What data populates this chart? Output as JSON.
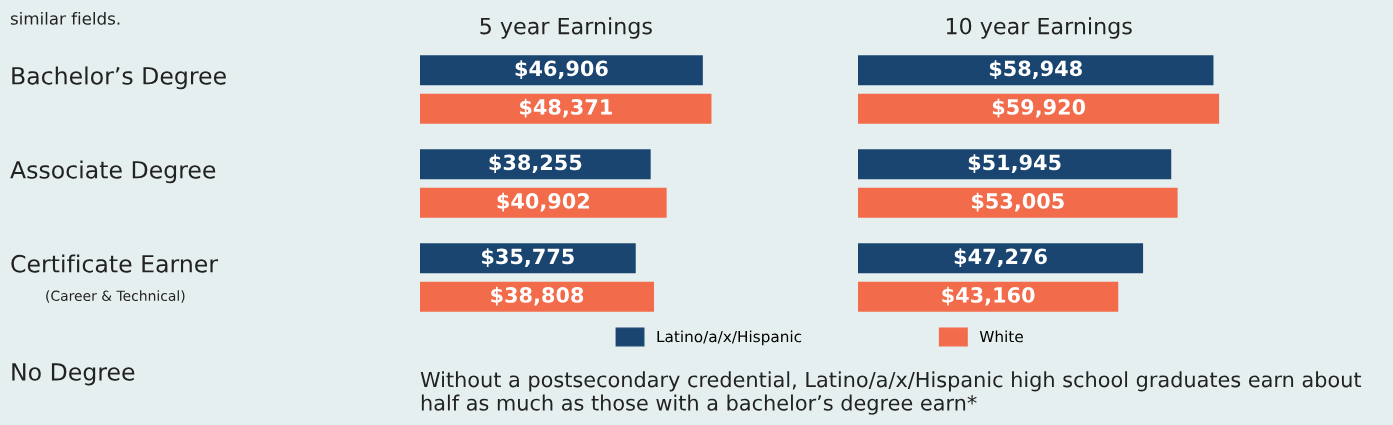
{
  "chart_data": [
    {
      "type": "bar",
      "orientation": "horizontal",
      "title": "5 year Earnings",
      "categories": [
        "Bachelor’s Degree",
        "Associate Degree",
        "Certificate Earner",
        "No Degree"
      ],
      "series": [
        {
          "name": "Latino/a/x/Hispanic",
          "color": "#1a4570",
          "values": [
            46906,
            38255,
            35775,
            null
          ],
          "value_labels": [
            "$46,906",
            "$38,255",
            "$35,775",
            null
          ]
        },
        {
          "name": "White",
          "color": "#f26b4a",
          "values": [
            48371,
            40902,
            38808,
            null
          ],
          "value_labels": [
            "$48,371",
            "$40,902",
            "$38,808",
            null
          ]
        }
      ],
      "legend": "bottom",
      "annotations": [
        "similar fields.",
        "(Career & Technical)",
        "Without a postsecondary credential, Latino/a/x/Hispanic high school graduates earn about half as much as those with a bachelor’s degree earn*"
      ]
    },
    {
      "type": "bar",
      "orientation": "horizontal",
      "title": "10 year Earnings",
      "categories": [
        null,
        null,
        null,
        null
      ],
      "series": [
        {
          "color": "#1a4570",
          "values": [
            58948,
            51945,
            47276,
            null
          ],
          "value_labels": [
            "$58,948",
            "$51,945",
            "$47,276",
            null
          ]
        },
        {
          "color": "#f26b4a",
          "values": [
            59920,
            53005,
            43160,
            null
          ],
          "value_labels": [
            "$59,920",
            "$53,005",
            "$43,160",
            null
          ]
        }
      ]
    }
  ]
}
